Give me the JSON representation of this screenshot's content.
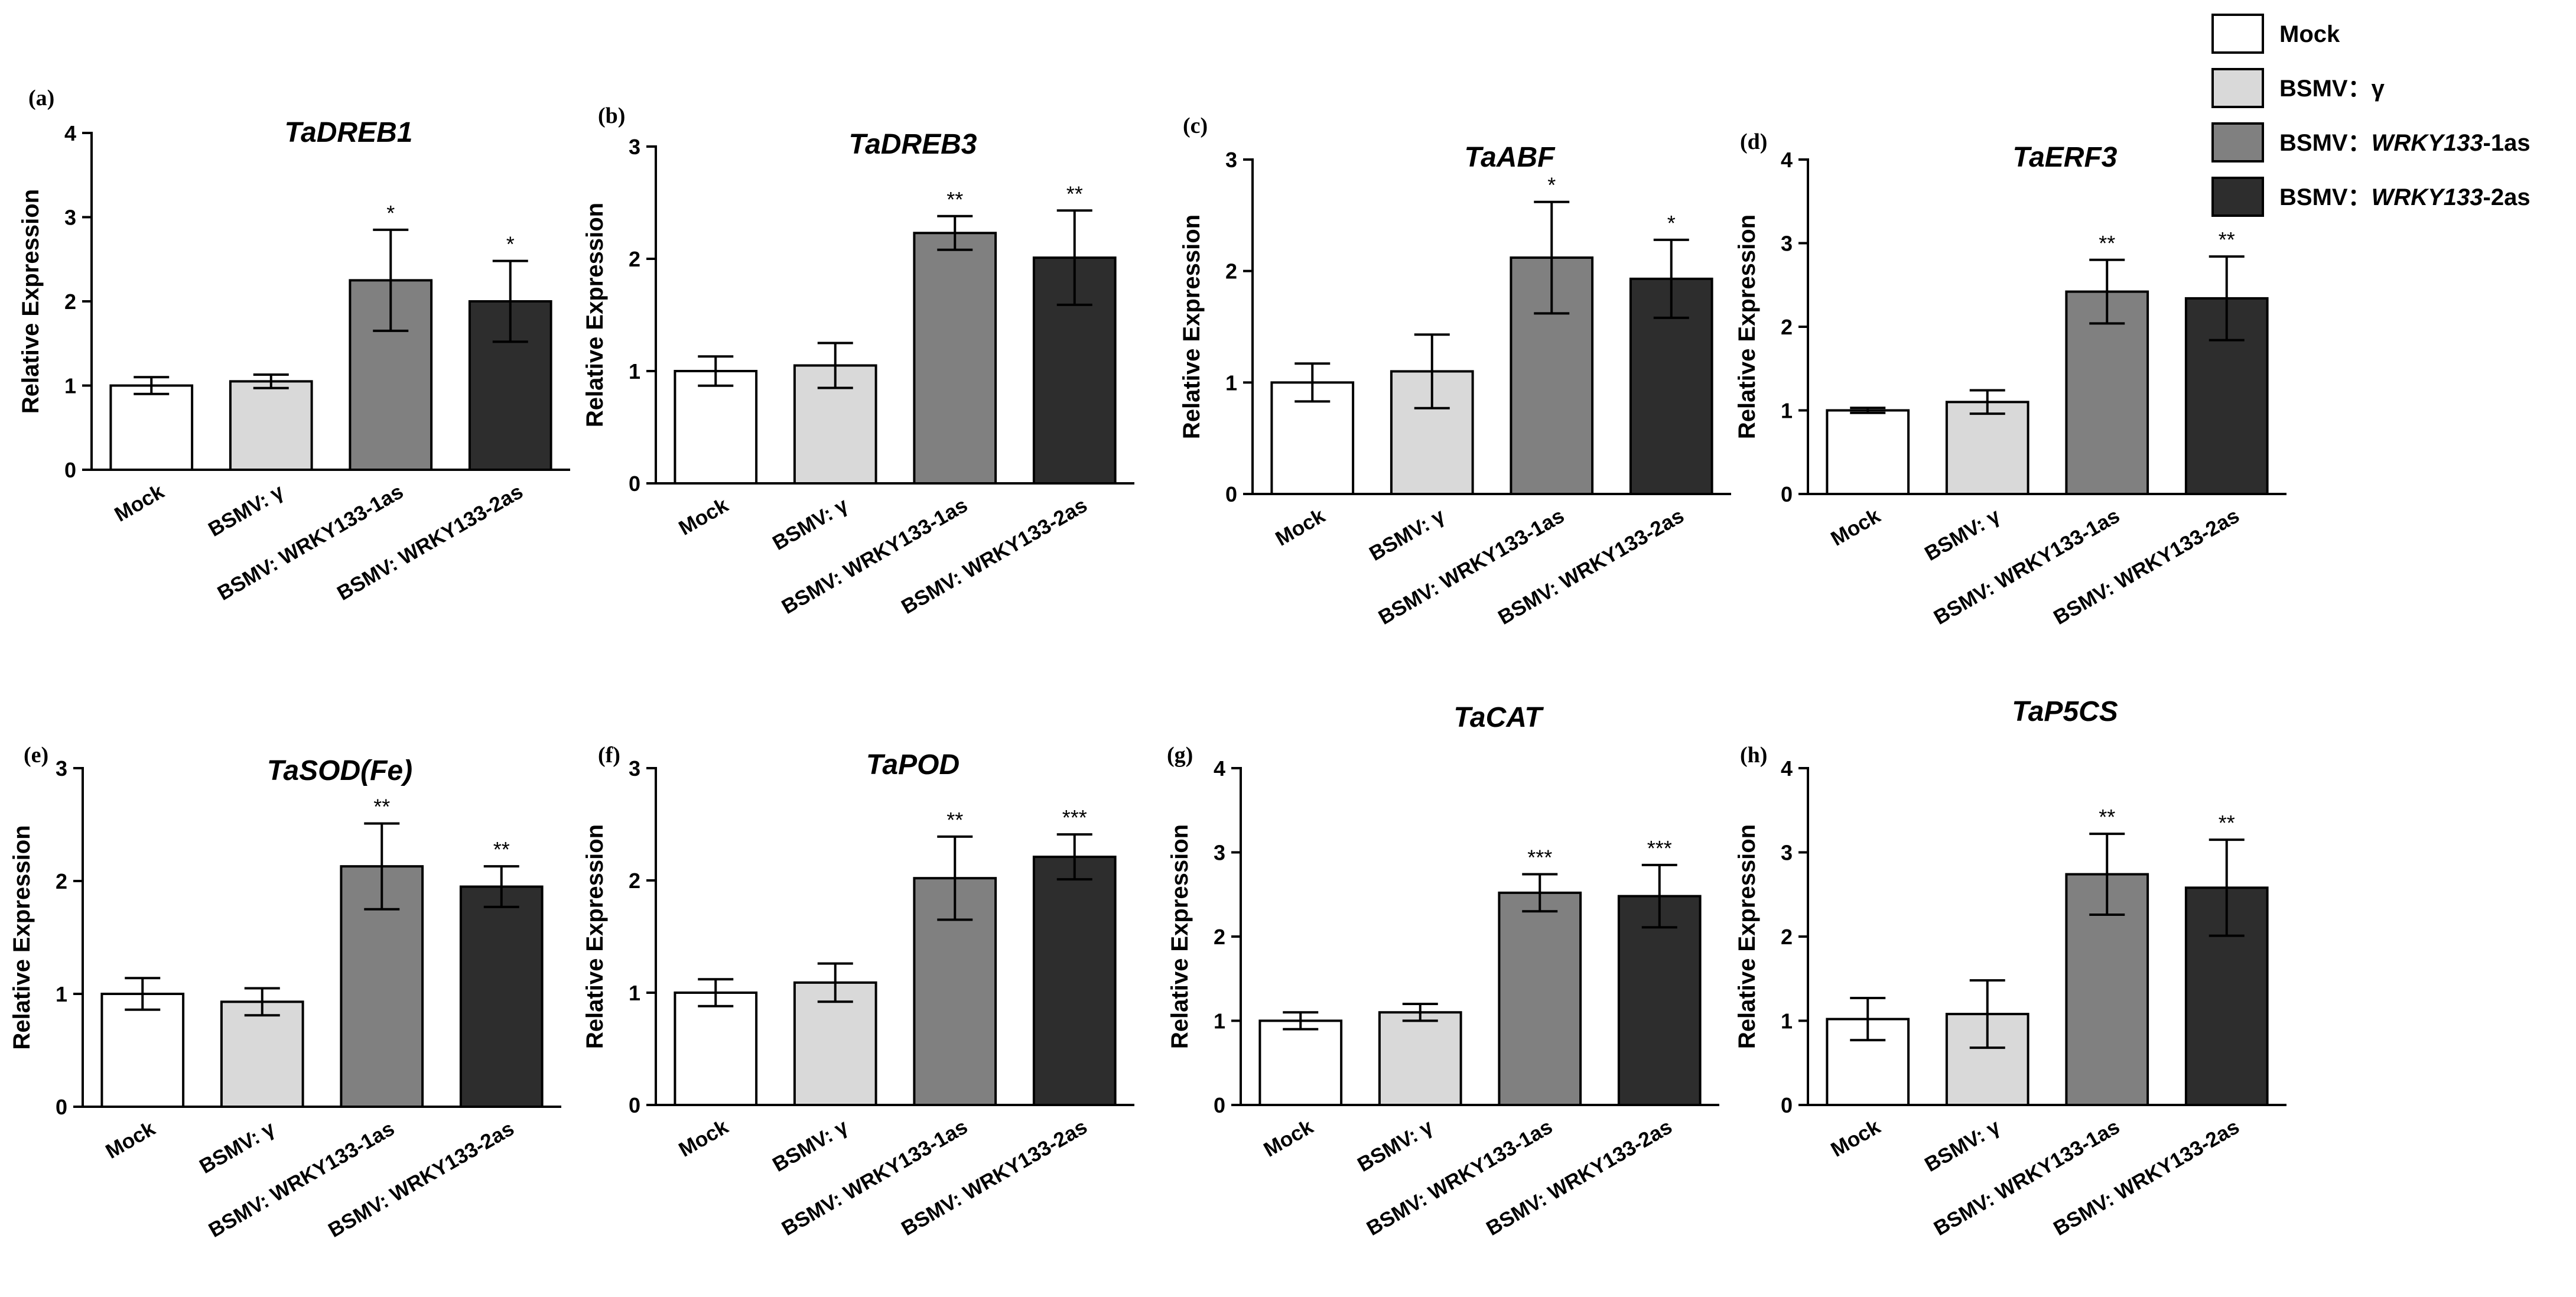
{
  "legend": {
    "items": [
      {
        "parts": [
          {
            "text": "Mock",
            "italic": false
          }
        ],
        "color": "#ffffff"
      },
      {
        "parts": [
          {
            "text": "BSMV：γ",
            "italic": false
          }
        ],
        "color": "#d9d9d9"
      },
      {
        "parts": [
          {
            "text": "BSMV：",
            "italic": false
          },
          {
            "text": "WRKY133",
            "italic": true
          },
          {
            "text": "-1as",
            "italic": false
          }
        ],
        "color": "#808080"
      },
      {
        "parts": [
          {
            "text": "BSMV：",
            "italic": false
          },
          {
            "text": "WRKY133",
            "italic": true
          },
          {
            "text": "-2as",
            "italic": false
          }
        ],
        "color": "#2d2d2d"
      }
    ]
  },
  "chart_data": [
    {
      "panel": "(a)",
      "type": "bar",
      "title": "TaDREB1",
      "ylabel": "Relative Expression",
      "ylim": [
        0,
        4
      ],
      "yticks": [
        0,
        1,
        2,
        3,
        4
      ],
      "categories": [
        "Mock",
        "BSMV: γ",
        "BSMV: WRKY133-1as",
        "BSMV: WRKY133-2as"
      ],
      "values": [
        1.0,
        1.05,
        2.25,
        2.0
      ],
      "errors": [
        0.1,
        0.08,
        0.6,
        0.48
      ],
      "significance": [
        "",
        "",
        "*",
        "*"
      ]
    },
    {
      "panel": "(b)",
      "type": "bar",
      "title": "TaDREB3",
      "ylabel": "Relative Expression",
      "ylim": [
        0,
        3
      ],
      "yticks": [
        0,
        1,
        2,
        3
      ],
      "categories": [
        "Mock",
        "BSMV: γ",
        "BSMV: WRKY133-1as",
        "BSMV: WRKY133-2as"
      ],
      "values": [
        1.0,
        1.05,
        2.23,
        2.01
      ],
      "errors": [
        0.13,
        0.2,
        0.15,
        0.42
      ],
      "significance": [
        "",
        "",
        "**",
        "**"
      ]
    },
    {
      "panel": "(c)",
      "type": "bar",
      "title": "TaABF",
      "ylabel": "Relative Expression",
      "ylim": [
        0,
        3
      ],
      "yticks": [
        0,
        1,
        2,
        3
      ],
      "categories": [
        "Mock",
        "BSMV: γ",
        "BSMV: WRKY133-1as",
        "BSMV: WRKY133-2as"
      ],
      "values": [
        1.0,
        1.1,
        2.12,
        1.93
      ],
      "errors": [
        0.17,
        0.33,
        0.5,
        0.35
      ],
      "significance": [
        "",
        "",
        "*",
        "*"
      ]
    },
    {
      "panel": "(d)",
      "type": "bar",
      "title": "TaERF3",
      "ylabel": "Relative Expression",
      "ylim": [
        0,
        4
      ],
      "yticks": [
        0,
        1,
        2,
        3,
        4
      ],
      "categories": [
        "Mock",
        "BSMV: γ",
        "BSMV: WRKY133-1as",
        "BSMV: WRKY133-2as"
      ],
      "values": [
        1.0,
        1.1,
        2.42,
        2.34
      ],
      "errors": [
        0.03,
        0.14,
        0.38,
        0.5
      ],
      "significance": [
        "",
        "",
        "**",
        "**"
      ]
    },
    {
      "panel": "(e)",
      "type": "bar",
      "title": "TaSOD(Fe)",
      "ylabel": "Relative Expression",
      "ylim": [
        0,
        3
      ],
      "yticks": [
        0,
        1,
        2,
        3
      ],
      "categories": [
        "Mock",
        "BSMV: γ",
        "BSMV: WRKY133-1as",
        "BSMV: WRKY133-2as"
      ],
      "values": [
        1.0,
        0.93,
        2.13,
        1.95
      ],
      "errors": [
        0.14,
        0.12,
        0.38,
        0.18
      ],
      "significance": [
        "",
        "",
        "**",
        "**"
      ]
    },
    {
      "panel": "(f)",
      "type": "bar",
      "title": "TaPOD",
      "ylabel": "Relative Expression",
      "ylim": [
        0,
        3
      ],
      "yticks": [
        0,
        1,
        2,
        3
      ],
      "categories": [
        "Mock",
        "BSMV: γ",
        "BSMV: WRKY133-1as",
        "BSMV: WRKY133-2as"
      ],
      "values": [
        1.0,
        1.09,
        2.02,
        2.21
      ],
      "errors": [
        0.12,
        0.17,
        0.37,
        0.2
      ],
      "significance": [
        "",
        "",
        "**",
        "***"
      ]
    },
    {
      "panel": "(g)",
      "type": "bar",
      "title": "TaCAT",
      "ylabel": "Relative Expression",
      "ylim": [
        0,
        4
      ],
      "yticks": [
        0,
        1,
        2,
        3,
        4
      ],
      "categories": [
        "Mock",
        "BSMV: γ",
        "BSMV: WRKY133-1as",
        "BSMV: WRKY133-2as"
      ],
      "values": [
        1.0,
        1.1,
        2.52,
        2.48
      ],
      "errors": [
        0.1,
        0.1,
        0.22,
        0.37
      ],
      "significance": [
        "",
        "",
        "***",
        "***"
      ]
    },
    {
      "panel": "(h)",
      "type": "bar",
      "title": "TaP5CS",
      "ylabel": "Relative Expression",
      "ylim": [
        0,
        4
      ],
      "yticks": [
        0,
        1,
        2,
        3,
        4
      ],
      "categories": [
        "Mock",
        "BSMV: γ",
        "BSMV: WRKY133-1as",
        "BSMV: WRKY133-2as"
      ],
      "values": [
        1.02,
        1.08,
        2.74,
        2.58
      ],
      "errors": [
        0.25,
        0.4,
        0.48,
        0.57
      ],
      "significance": [
        "",
        "",
        "**",
        "**"
      ]
    }
  ]
}
